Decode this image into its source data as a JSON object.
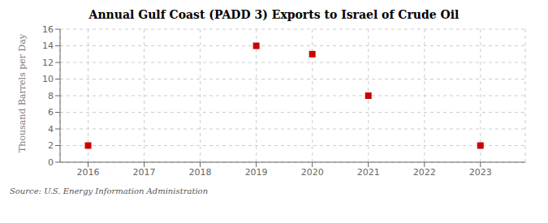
{
  "chart_data": {
    "type": "scatter",
    "title": "Annual Gulf Coast (PADD 3) Exports to Israel of Crude Oil",
    "ylabel": "Thousand Barrels per Day",
    "annotation": "Source: U.S. Energy Information Administration",
    "x": [
      2016,
      2019,
      2020,
      2021,
      2023
    ],
    "values": [
      2,
      14,
      13,
      8,
      2
    ],
    "xlim": [
      2015.5,
      2023.8
    ],
    "ylim": [
      0,
      16
    ],
    "xticks": [
      2016,
      2017,
      2018,
      2019,
      2020,
      2021,
      2022,
      2023
    ],
    "yticks": [
      0,
      2,
      4,
      6,
      8,
      10,
      12,
      14,
      16
    ],
    "color": "#cc0000",
    "marker": "square",
    "grid": true
  }
}
